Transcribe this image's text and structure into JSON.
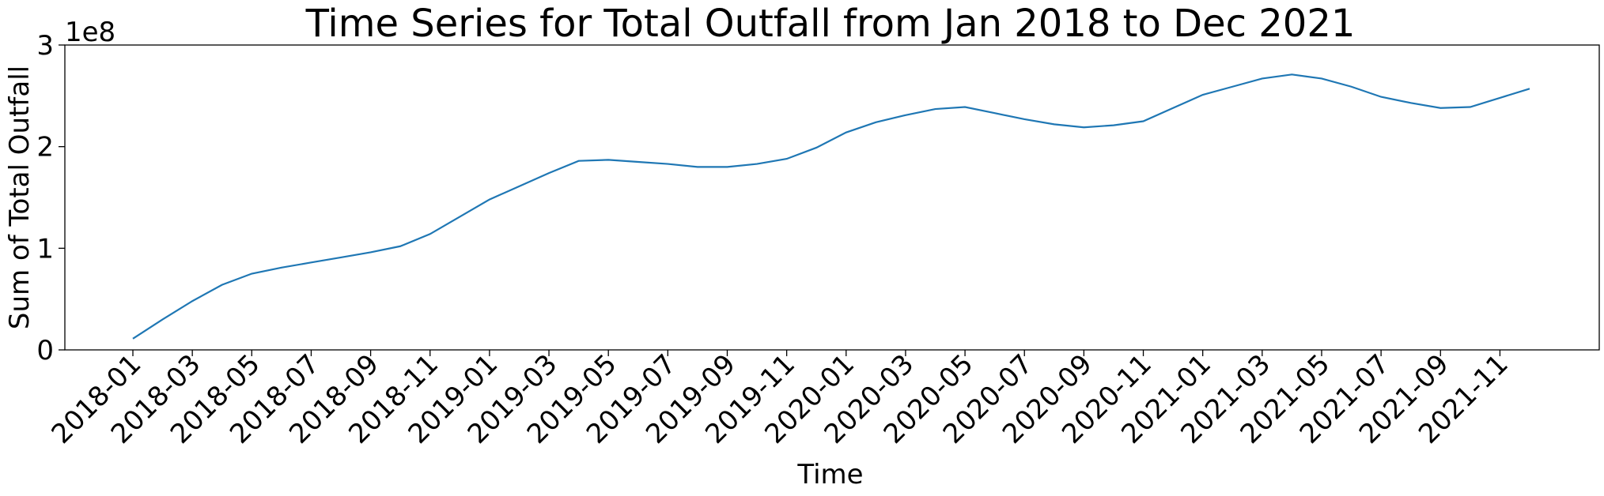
{
  "chart_data": {
    "type": "line",
    "title": "Time Series for Total Outfall from Jan 2018 to Dec 2021",
    "xlabel": "Time",
    "ylabel": "Sum of Total Outfall",
    "y_offset_label": "1e8",
    "y_scale_multiplier": 100000000,
    "ylim": [
      0,
      300000000
    ],
    "y_ticks": [
      0,
      100000000,
      200000000,
      300000000
    ],
    "y_tick_labels": [
      "0",
      "1",
      "2",
      "3"
    ],
    "x_tick_labels": [
      "2018-01",
      "2018-03",
      "2018-05",
      "2018-07",
      "2018-09",
      "2018-11",
      "2019-01",
      "2019-03",
      "2019-05",
      "2019-07",
      "2019-09",
      "2019-11",
      "2020-01",
      "2020-03",
      "2020-05",
      "2020-07",
      "2020-09",
      "2020-11",
      "2021-01",
      "2021-03",
      "2021-05",
      "2021-07",
      "2021-09",
      "2021-11"
    ],
    "grid": false,
    "line_color": "#1f77b4",
    "series": [
      {
        "x": [
          "2018-01",
          "2018-02",
          "2018-03",
          "2018-04",
          "2018-05",
          "2018-06",
          "2018-07",
          "2018-08",
          "2018-09",
          "2018-10",
          "2018-11",
          "2018-12",
          "2019-01",
          "2019-02",
          "2019-03",
          "2019-04",
          "2019-05",
          "2019-06",
          "2019-07",
          "2019-08",
          "2019-09",
          "2019-10",
          "2019-11",
          "2019-12",
          "2020-01",
          "2020-02",
          "2020-03",
          "2020-04",
          "2020-05",
          "2020-06",
          "2020-07",
          "2020-08",
          "2020-09",
          "2020-10",
          "2020-11",
          "2020-12",
          "2021-01",
          "2021-02",
          "2021-03",
          "2021-04",
          "2021-05",
          "2021-06",
          "2021-07",
          "2021-08",
          "2021-09",
          "2021-10",
          "2021-11",
          "2021-12"
        ],
        "values": [
          11000000,
          30000000,
          48000000,
          64000000,
          75000000,
          81000000,
          86000000,
          91000000,
          96000000,
          102000000,
          114000000,
          131000000,
          148000000,
          161000000,
          174000000,
          186000000,
          187000000,
          185000000,
          183000000,
          180000000,
          180000000,
          183000000,
          188000000,
          199000000,
          214000000,
          224000000,
          231000000,
          237000000,
          239000000,
          233000000,
          227000000,
          222000000,
          219000000,
          221000000,
          225000000,
          238000000,
          251000000,
          259000000,
          267000000,
          271000000,
          267000000,
          259000000,
          249000000,
          243000000,
          238000000,
          239000000,
          248000000,
          257000000
        ]
      }
    ]
  }
}
